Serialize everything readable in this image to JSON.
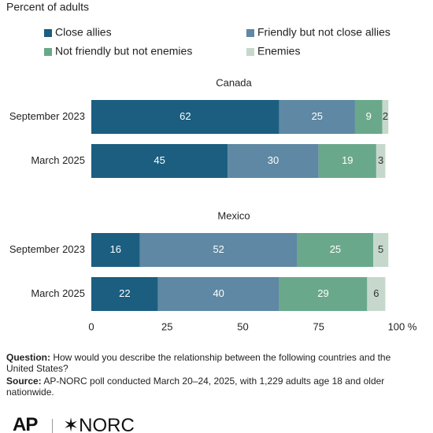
{
  "chart_data": {
    "type": "stacked_bar",
    "subtitle": "Percent of adults",
    "panels": [
      {
        "title": "Canada",
        "categories": [
          "September 2023",
          "March 2025"
        ]
      },
      {
        "title": "Mexico",
        "categories": [
          "September 2023",
          "March 2025"
        ]
      }
    ],
    "series": [
      {
        "name": "Close allies",
        "color": "#1b5e80",
        "values": [
          [
            62,
            45
          ],
          [
            16,
            22
          ]
        ]
      },
      {
        "name": "Friendly but not close allies",
        "color": "#5e88a3",
        "values": [
          [
            25,
            30
          ],
          [
            52,
            40
          ]
        ]
      },
      {
        "name": "Not friendly but not enemies",
        "color": "#6aa88b",
        "values": [
          [
            9,
            19
          ],
          [
            25,
            29
          ]
        ]
      },
      {
        "name": "Enemies",
        "color": "#c6d8cc",
        "values": [
          [
            2,
            3
          ],
          [
            5,
            6
          ]
        ]
      }
    ],
    "xlim": [
      0,
      100
    ],
    "xticks": [
      0,
      25,
      50,
      75,
      {
        "value": 100,
        "label": "100 %"
      }
    ]
  },
  "notes": {
    "question_label": "Question:",
    "question": "How would you describe the relationship between the following countries and the United States?",
    "source_label": "Source:",
    "source": "AP-NORC poll conducted March 20–24, 2025, with 1,229 adults age 18 and older nationwide."
  },
  "logos": {
    "ap": "AP",
    "norc": "✶NORC"
  }
}
